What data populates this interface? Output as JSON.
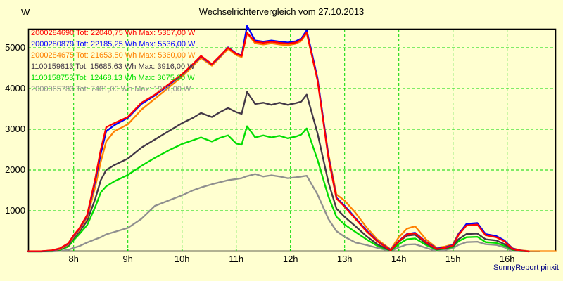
{
  "header": {
    "title": "Wechselrichtervergleich vom 27.10.2013"
  },
  "footer": {
    "credit": "SunnyReport pinxit"
  },
  "colors": {
    "background": "#FFFFD0",
    "grid": "#00D800",
    "axis": "#000000",
    "tick_text": "#000000",
    "credit_text": "#000080"
  },
  "chart_data": {
    "type": "line",
    "title": "Wechselrichtervergleich vom 27.10.2013",
    "xlabel": "",
    "ylabel": "W",
    "x_unit": "hour of day",
    "xlim": [
      7.16,
      16.9
    ],
    "ylim": [
      0,
      5470
    ],
    "grid": true,
    "legend_position": "top-left",
    "x_ticks": [
      {
        "value": 8,
        "label": "8h"
      },
      {
        "value": 9,
        "label": "9h"
      },
      {
        "value": 10,
        "label": "10h"
      },
      {
        "value": 11,
        "label": "11h"
      },
      {
        "value": 12,
        "label": "12h"
      },
      {
        "value": 13,
        "label": "13h"
      },
      {
        "value": 14,
        "label": "14h"
      },
      {
        "value": 15,
        "label": "15h"
      },
      {
        "value": 16,
        "label": "16h"
      }
    ],
    "y_ticks": [
      {
        "value": 1000,
        "label": "1000"
      },
      {
        "value": 2000,
        "label": "2000"
      },
      {
        "value": 3000,
        "label": "3000"
      },
      {
        "value": 4000,
        "label": "4000"
      },
      {
        "value": 5000,
        "label": "5000"
      }
    ],
    "x": [
      7.16,
      7.4,
      7.6,
      7.75,
      7.9,
      8.0,
      8.1,
      8.25,
      8.4,
      8.5,
      8.6,
      8.75,
      9.0,
      9.25,
      9.5,
      9.75,
      10.0,
      10.2,
      10.35,
      10.55,
      10.7,
      10.85,
      11.0,
      11.1,
      11.2,
      11.35,
      11.5,
      11.65,
      11.8,
      11.95,
      12.1,
      12.2,
      12.3,
      12.5,
      12.7,
      12.85,
      13.0,
      13.2,
      13.4,
      13.6,
      13.85,
      14.0,
      14.15,
      14.3,
      14.5,
      14.7,
      14.85,
      15.0,
      15.1,
      15.25,
      15.45,
      15.6,
      15.8,
      15.95,
      16.1,
      16.25,
      16.4,
      16.6,
      16.9
    ],
    "series": [
      {
        "name": "2000284690",
        "color": "#FF0000",
        "tot_wh": "22040,75",
        "max_w": "5367,00",
        "label": "2000284690 Tot: 22040,75 Wh Max: 5367,00 W",
        "values": [
          5,
          5,
          30,
          80,
          200,
          400,
          560,
          900,
          1800,
          2500,
          3050,
          3150,
          3300,
          3650,
          3850,
          4100,
          4350,
          4600,
          4800,
          4600,
          4800,
          5000,
          4850,
          4800,
          5367,
          5150,
          5120,
          5150,
          5120,
          5100,
          5130,
          5200,
          5380,
          4200,
          2300,
          1300,
          1100,
          800,
          500,
          250,
          30,
          250,
          420,
          450,
          230,
          60,
          90,
          150,
          400,
          640,
          660,
          400,
          350,
          250,
          60,
          20,
          0,
          null,
          null
        ]
      },
      {
        "name": "2000280879",
        "color": "#0000FF",
        "tot_wh": "22185,25",
        "max_w": "5536,00",
        "label": "2000280879 Tot: 22185,25 Wh Max: 5536,00 W",
        "values": [
          5,
          5,
          25,
          75,
          190,
          390,
          550,
          880,
          1750,
          2400,
          2950,
          3100,
          3280,
          3620,
          3830,
          4080,
          4340,
          4590,
          4790,
          4590,
          4790,
          5010,
          4860,
          4810,
          5536,
          5180,
          5150,
          5180,
          5150,
          5130,
          5160,
          5230,
          5430,
          4250,
          2350,
          1320,
          1120,
          820,
          520,
          260,
          40,
          260,
          430,
          460,
          240,
          70,
          100,
          160,
          420,
          680,
          700,
          430,
          380,
          270,
          70,
          25,
          0,
          null,
          null
        ]
      },
      {
        "name": "2000284675",
        "color": "#FF8000",
        "tot_wh": "21653,50",
        "max_w": "5360,00",
        "label": "2000284675 Tot: 21653,50 Wh Max: 5360,00 W",
        "values": [
          8,
          8,
          20,
          60,
          170,
          360,
          520,
          830,
          1600,
          2200,
          2700,
          2950,
          3120,
          3480,
          3750,
          4020,
          4290,
          4550,
          4750,
          4560,
          4760,
          4970,
          4820,
          4770,
          5360,
          5110,
          5080,
          5110,
          5080,
          5060,
          5100,
          5170,
          5360,
          4200,
          2400,
          1400,
          1250,
          950,
          600,
          300,
          50,
          350,
          560,
          620,
          300,
          90,
          120,
          180,
          440,
          660,
          680,
          420,
          370,
          260,
          80,
          30,
          10,
          8,
          8
        ]
      },
      {
        "name": "1100159813",
        "color": "#423747",
        "tot_wh": "15685,63",
        "max_w": "3916,00",
        "label": "1100159813 Tot: 15685,63 Wh Max: 3916,00 W",
        "values": [
          0,
          0,
          15,
          50,
          150,
          330,
          480,
          750,
          1300,
          1750,
          2000,
          2120,
          2280,
          2550,
          2750,
          2950,
          3150,
          3280,
          3400,
          3300,
          3420,
          3520,
          3420,
          3380,
          3916,
          3620,
          3650,
          3600,
          3650,
          3600,
          3640,
          3680,
          3850,
          2900,
          1700,
          1050,
          850,
          620,
          380,
          180,
          20,
          240,
          390,
          410,
          200,
          50,
          80,
          130,
          300,
          430,
          440,
          300,
          270,
          180,
          50,
          15,
          0,
          null,
          null
        ]
      },
      {
        "name": "1100158753",
        "color": "#00DD00",
        "tot_wh": "12468,13",
        "max_w": "3075,00",
        "label": "1100158753 Tot: 12468,13 Wh Max: 3075,00 W",
        "values": [
          0,
          0,
          10,
          40,
          120,
          280,
          420,
          650,
          1100,
          1450,
          1600,
          1720,
          1880,
          2100,
          2300,
          2480,
          2640,
          2730,
          2800,
          2700,
          2790,
          2850,
          2650,
          2620,
          3075,
          2800,
          2850,
          2800,
          2840,
          2780,
          2820,
          2870,
          3020,
          2250,
          1350,
          850,
          660,
          480,
          300,
          140,
          15,
          180,
          300,
          320,
          160,
          40,
          70,
          110,
          250,
          350,
          360,
          230,
          210,
          140,
          40,
          10,
          0,
          null,
          null
        ]
      },
      {
        "name": "2000065783",
        "color": "#8F8F8F",
        "tot_wh": "7481,00",
        "max_w": "1901,00",
        "label": "2000065783 Tot: 7481,00 Wh Max: 1901,00 W",
        "values": [
          0,
          0,
          0,
          10,
          40,
          90,
          130,
          220,
          300,
          350,
          420,
          480,
          580,
          800,
          1120,
          1250,
          1380,
          1500,
          1570,
          1650,
          1700,
          1750,
          1780,
          1800,
          1850,
          1901,
          1840,
          1870,
          1840,
          1800,
          1820,
          1840,
          1860,
          1400,
          800,
          500,
          360,
          220,
          160,
          90,
          10,
          100,
          170,
          180,
          90,
          10,
          40,
          80,
          160,
          230,
          240,
          180,
          160,
          100,
          10,
          5,
          3,
          3,
          null
        ]
      }
    ]
  }
}
